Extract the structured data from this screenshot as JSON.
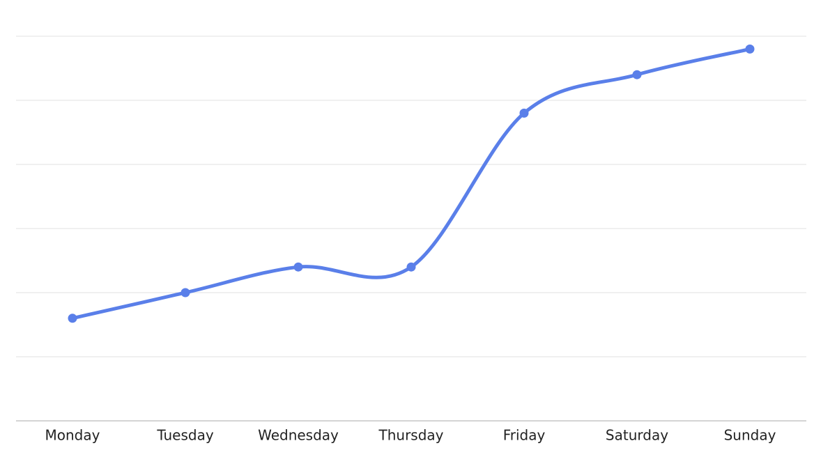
{
  "chart_data": {
    "type": "line",
    "categories": [
      "Monday",
      "Tuesday",
      "Wednesday",
      "Thursday",
      "Friday",
      "Saturday",
      "Sunday"
    ],
    "values": [
      1.6,
      2.0,
      2.4,
      2.4,
      4.8,
      5.4,
      5.8
    ],
    "color": "#5a7fe9",
    "ylim": [
      0,
      6
    ],
    "yticks": [
      1,
      2,
      3,
      4,
      5,
      6
    ],
    "grid": true
  }
}
